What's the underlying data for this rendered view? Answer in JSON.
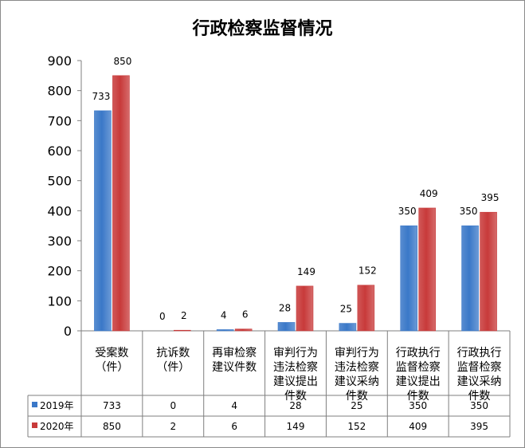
{
  "chart_data": {
    "type": "bar",
    "title": "行政检察监督情况",
    "categories": [
      [
        "受案数",
        "（件）"
      ],
      [
        "抗诉数",
        "（件）"
      ],
      [
        "再审检察",
        "建议件数"
      ],
      [
        "审判行为",
        "违法检察",
        "建议提出",
        "件数"
      ],
      [
        "审判行为",
        "违法检察",
        "建议采纳",
        "件数"
      ],
      [
        "行政执行",
        "监督检察",
        "建议提出",
        "件数"
      ],
      [
        "行政执行",
        "监督检察",
        "建议采纳",
        "件数"
      ]
    ],
    "series": [
      {
        "name": "2019年",
        "values": [
          733,
          0,
          4,
          28,
          25,
          350,
          350
        ],
        "color": "#3a78c8"
      },
      {
        "name": "2020年",
        "values": [
          850,
          2,
          6,
          149,
          152,
          409,
          395
        ],
        "color": "#c83a3a"
      }
    ],
    "ylim": [
      0,
      900
    ],
    "yticks": [
      0,
      100,
      200,
      300,
      400,
      500,
      600,
      700,
      800,
      900
    ],
    "grid": false,
    "legend": "data-table"
  }
}
